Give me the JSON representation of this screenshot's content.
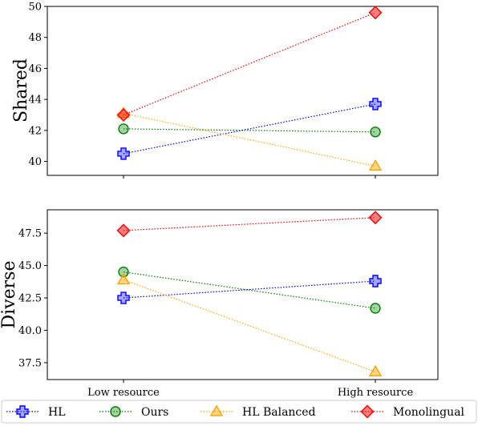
{
  "chart_data": [
    {
      "type": "line",
      "ylabel": "Shared",
      "categories": [
        "Low resource",
        "High resource"
      ],
      "ylim": [
        39.1,
        50
      ],
      "yticks": [
        40,
        42,
        44,
        46,
        48,
        50
      ],
      "ytick_labels": [
        "40",
        "42",
        "44",
        "46",
        "48",
        "50"
      ],
      "series": [
        {
          "name": "HL",
          "values": [
            40.5,
            43.7
          ],
          "color": "#0000ff",
          "marker": "plus"
        },
        {
          "name": "Ours",
          "values": [
            42.1,
            41.9
          ],
          "color": "#008000",
          "marker": "circle"
        },
        {
          "name": "HL Balanced",
          "values": [
            43.1,
            39.7
          ],
          "color": "#ffa500",
          "marker": "triangle"
        },
        {
          "name": "Monolingual",
          "values": [
            43.0,
            49.6
          ],
          "color": "#ff0000",
          "marker": "diamond"
        }
      ]
    },
    {
      "type": "line",
      "ylabel": "Diverse",
      "categories": [
        "Low resource",
        "High resource"
      ],
      "ylim": [
        36.2,
        49.3
      ],
      "yticks": [
        37.5,
        40.0,
        42.5,
        45.0,
        47.5
      ],
      "ytick_labels": [
        "37.5",
        "40.0",
        "42.5",
        "45.0",
        "47.5"
      ],
      "series": [
        {
          "name": "HL",
          "values": [
            42.5,
            43.8
          ],
          "color": "#0000ff",
          "marker": "plus"
        },
        {
          "name": "Ours",
          "values": [
            44.5,
            41.7
          ],
          "color": "#008000",
          "marker": "circle"
        },
        {
          "name": "HL Balanced",
          "values": [
            43.9,
            36.8
          ],
          "color": "#ffa500",
          "marker": "triangle"
        },
        {
          "name": "Monolingual",
          "values": [
            47.7,
            48.7
          ],
          "color": "#ff0000",
          "marker": "diamond"
        }
      ]
    }
  ],
  "legend": {
    "placement": "bottom",
    "entries": [
      "HL",
      "Ours",
      "HL Balanced",
      "Monolingual"
    ]
  }
}
